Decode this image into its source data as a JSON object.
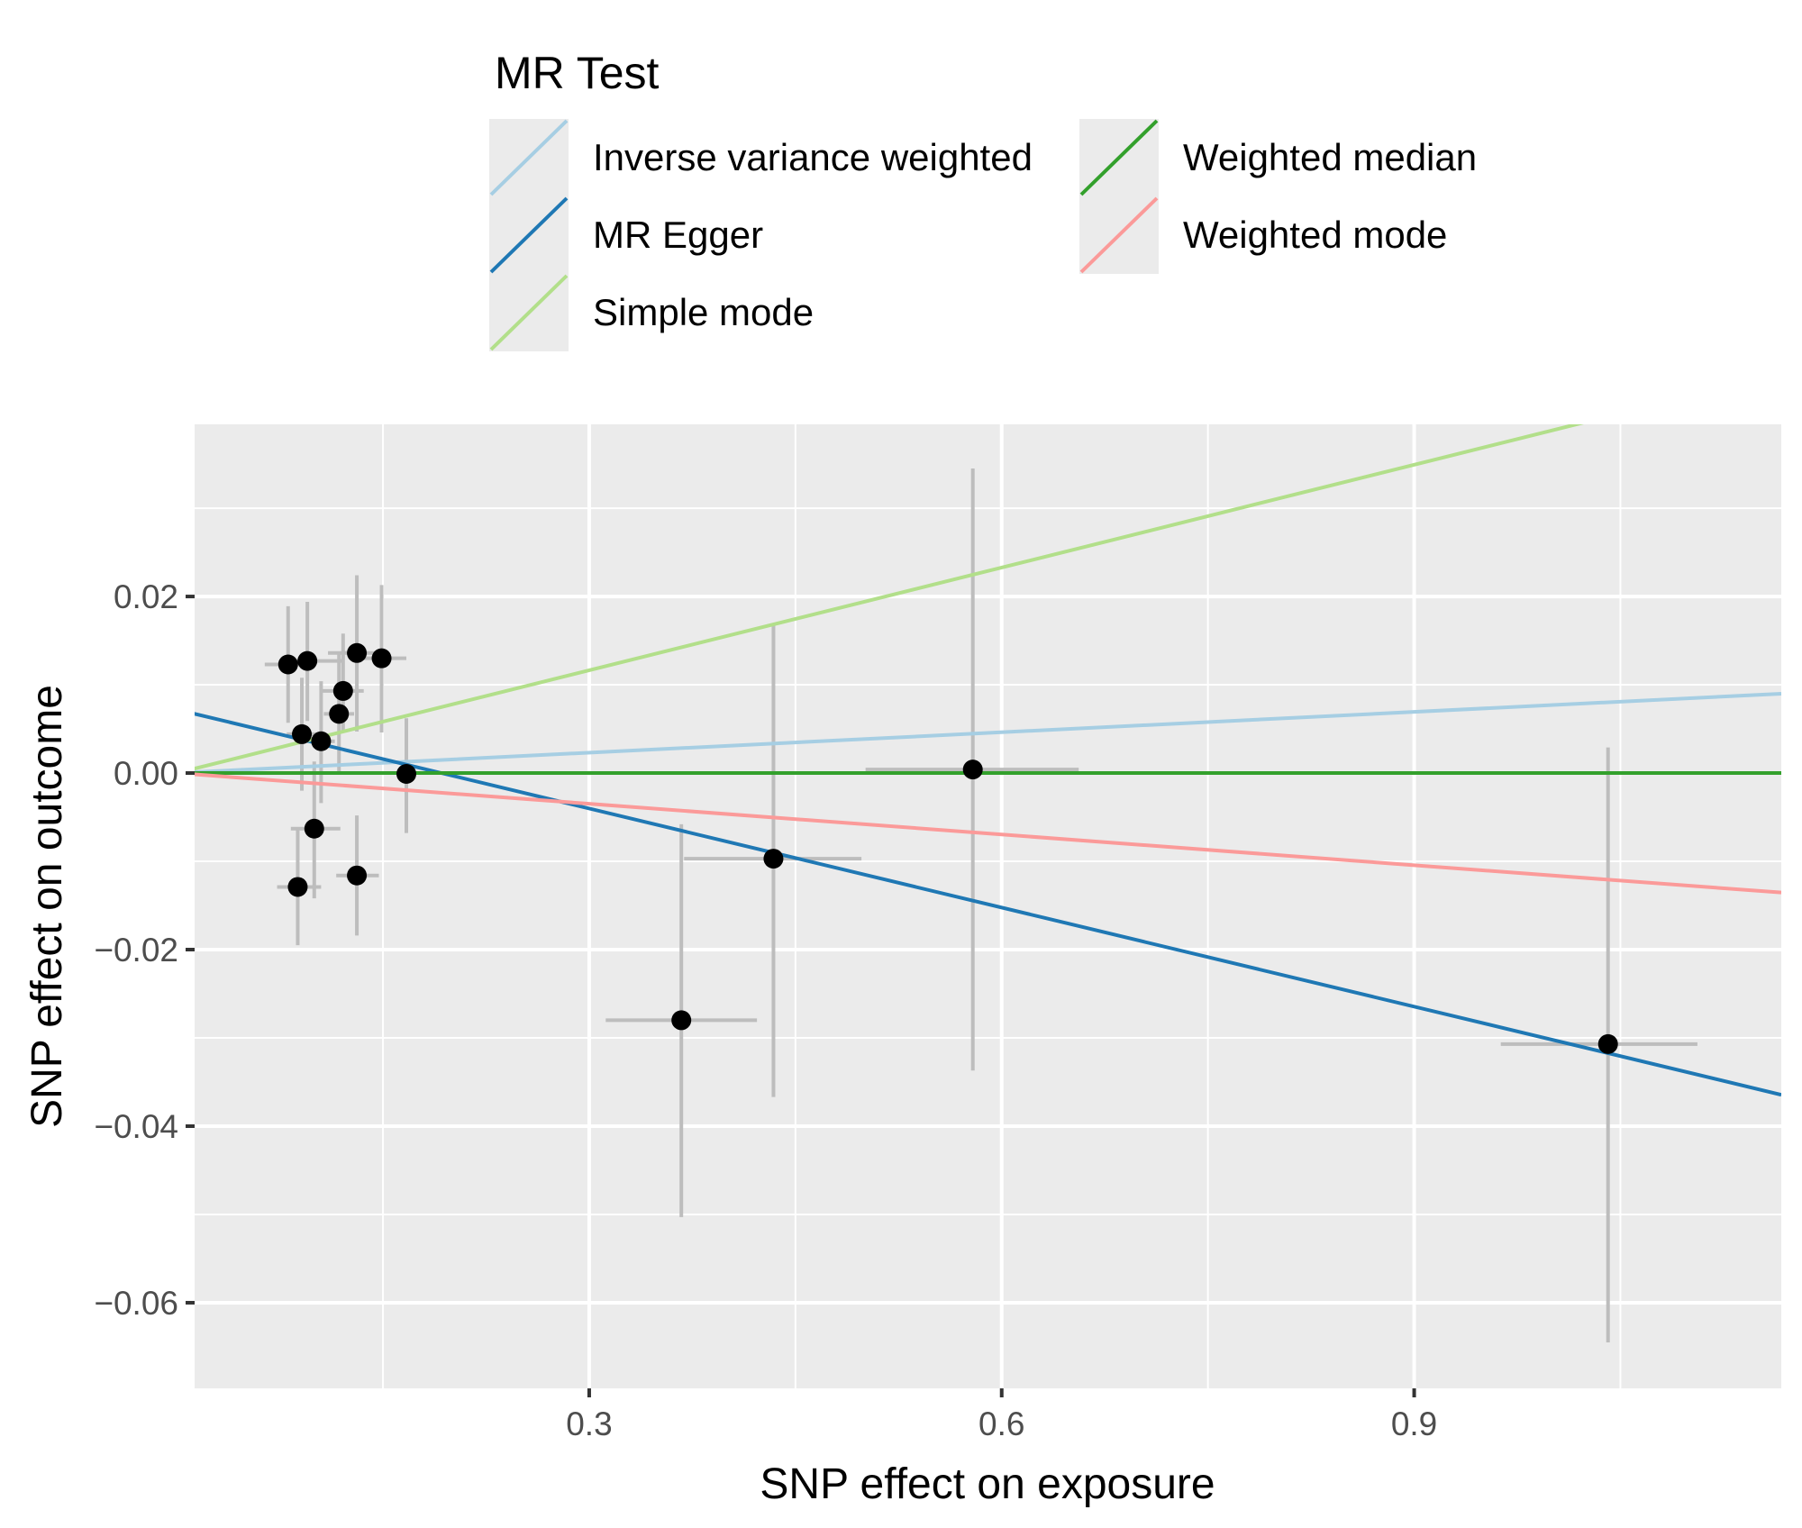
{
  "chart_data": {
    "type": "scatter",
    "title": "",
    "xlabel": "SNP effect on exposure",
    "ylabel": "SNP effect on outcome",
    "xlim": [
      0.013,
      1.167
    ],
    "ylim": [
      -0.0697,
      0.0395
    ],
    "x_ticks": [
      0.3,
      0.6,
      0.9
    ],
    "x_tick_labels": [
      "0.3",
      "0.6",
      "0.9"
    ],
    "x_minor_ticks": [
      0.15,
      0.45,
      0.75,
      1.05
    ],
    "y_ticks": [
      0.02,
      0.0,
      -0.02,
      -0.04,
      -0.06
    ],
    "y_tick_labels": [
      "0.02",
      "0.00",
      "−0.02",
      "−0.04",
      "−0.06"
    ],
    "y_minor_ticks": [
      0.03,
      0.01,
      -0.01,
      -0.03,
      -0.05
    ],
    "grid": true,
    "legend": {
      "title": "MR Test",
      "placement": "top",
      "columns": [
        [
          {
            "name": "Inverse variance weighted",
            "color": "#a6cee3"
          },
          {
            "name": "MR Egger",
            "color": "#1f78b4"
          },
          {
            "name": "Simple mode",
            "color": "#b2df8a"
          }
        ],
        [
          {
            "name": "Weighted median",
            "color": "#33a02c"
          },
          {
            "name": "Weighted mode",
            "color": "#fb9a99"
          }
        ]
      ]
    },
    "points": [
      {
        "x": 0.081,
        "y": 0.0123,
        "x_lo": 0.064,
        "x_hi": 0.098,
        "y_lo": 0.0057,
        "y_hi": 0.0189
      },
      {
        "x": 0.095,
        "y": 0.0127,
        "x_lo": 0.08,
        "x_hi": 0.121,
        "y_lo": 0.0059,
        "y_hi": 0.0194
      },
      {
        "x": 0.131,
        "y": 0.0136,
        "x_lo": 0.11,
        "x_hi": 0.148,
        "y_lo": 0.0047,
        "y_hi": 0.0224
      },
      {
        "x": 0.149,
        "y": 0.013,
        "x_lo": 0.131,
        "x_hi": 0.167,
        "y_lo": 0.0046,
        "y_hi": 0.0213
      },
      {
        "x": 0.121,
        "y": 0.0093,
        "x_lo": 0.106,
        "x_hi": 0.136,
        "y_lo": 0.0047,
        "y_hi": 0.0158
      },
      {
        "x": 0.118,
        "y": 0.0067,
        "x_lo": 0.107,
        "x_hi": 0.129,
        "y_lo": 0.0002,
        "y_hi": 0.0135
      },
      {
        "x": 0.091,
        "y": 0.0044,
        "x_lo": 0.08,
        "x_hi": 0.102,
        "y_lo": -0.002,
        "y_hi": 0.0108
      },
      {
        "x": 0.105,
        "y": 0.0036,
        "x_lo": 0.095,
        "x_hi": 0.115,
        "y_lo": -0.0034,
        "y_hi": 0.0104
      },
      {
        "x": 0.167,
        "y": -0.0001,
        "x_lo": 0.16,
        "x_hi": 0.174,
        "y_lo": -0.0068,
        "y_hi": 0.0062
      },
      {
        "x": 0.1,
        "y": -0.0063,
        "x_lo": 0.083,
        "x_hi": 0.119,
        "y_lo": -0.0142,
        "y_hi": 0.0013
      },
      {
        "x": 0.088,
        "y": -0.0129,
        "x_lo": 0.073,
        "x_hi": 0.105,
        "y_lo": -0.0195,
        "y_hi": -0.0063
      },
      {
        "x": 0.131,
        "y": -0.0116,
        "x_lo": 0.116,
        "x_hi": 0.147,
        "y_lo": -0.0184,
        "y_hi": -0.0048
      },
      {
        "x": 0.367,
        "y": -0.028,
        "x_lo": 0.312,
        "x_hi": 0.422,
        "y_lo": -0.0503,
        "y_hi": -0.0058
      },
      {
        "x": 0.434,
        "y": -0.0097,
        "x_lo": 0.369,
        "x_hi": 0.498,
        "y_lo": -0.0367,
        "y_hi": 0.0167
      },
      {
        "x": 0.579,
        "y": 0.0004,
        "x_lo": 0.501,
        "x_hi": 0.656,
        "y_lo": -0.0337,
        "y_hi": 0.0345
      },
      {
        "x": 1.041,
        "y": -0.0307,
        "x_lo": 0.963,
        "x_hi": 1.106,
        "y_lo": -0.0645,
        "y_hi": 0.0029
      }
    ],
    "series": [
      {
        "name": "Inverse variance weighted",
        "type": "line",
        "intercept": 0.0,
        "slope": 0.0077,
        "color": "#a6cee3"
      },
      {
        "name": "MR Egger",
        "type": "line",
        "intercept": 0.0072,
        "slope": -0.0374,
        "color": "#1f78b4"
      },
      {
        "name": "Simple mode",
        "type": "line",
        "intercept": 0.0,
        "slope": 0.0388,
        "color": "#b2df8a"
      },
      {
        "name": "Weighted median",
        "type": "line",
        "intercept": 0.0,
        "slope": 0.0,
        "color": "#33a02c"
      },
      {
        "name": "Weighted mode",
        "type": "line",
        "intercept": 0.0,
        "slope": -0.0116,
        "color": "#fb9a99"
      }
    ],
    "colors": {
      "panel_background": "#ebebeb",
      "grid": "#ffffff",
      "errorbar": "#bdbdbd",
      "point": "#000000"
    }
  }
}
